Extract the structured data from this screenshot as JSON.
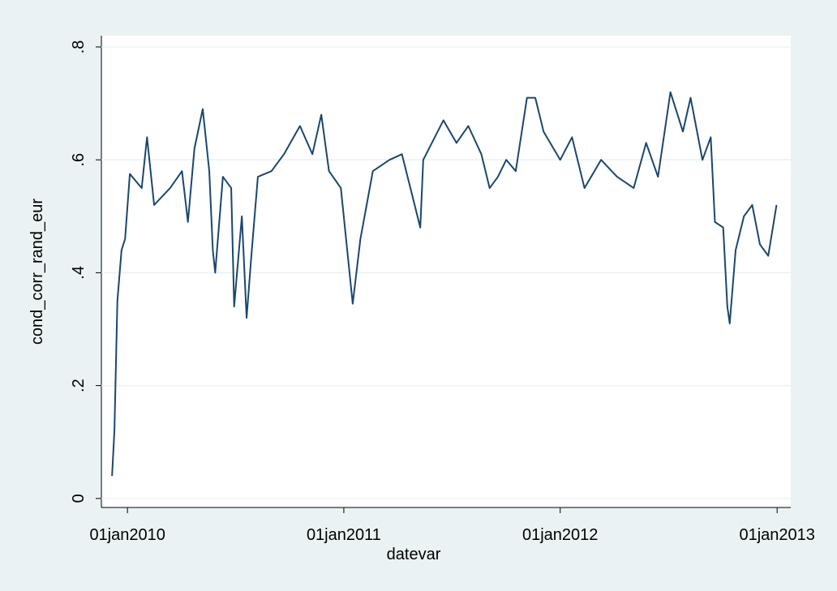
{
  "chart_data": {
    "type": "line",
    "x_label": "datevar",
    "y_label": "cond_corr_rand_eur",
    "x": [
      "2009-12-06",
      "2009-12-10",
      "2009-12-15",
      "2009-12-22",
      "2009-12-28",
      "2010-01-05",
      "2010-01-25",
      "2010-02-03",
      "2010-02-15",
      "2010-03-14",
      "2010-04-03",
      "2010-04-13",
      "2010-04-24",
      "2010-05-08",
      "2010-05-19",
      "2010-05-25",
      "2010-05-29",
      "2010-06-11",
      "2010-06-25",
      "2010-06-30",
      "2010-07-13",
      "2010-07-21",
      "2010-07-29",
      "2010-08-09",
      "2010-09-01",
      "2010-09-22",
      "2010-10-19",
      "2010-11-09",
      "2010-11-24",
      "2010-12-07",
      "2010-12-27",
      "2011-01-16",
      "2011-01-29",
      "2011-02-19",
      "2011-03-19",
      "2011-04-09",
      "2011-05-10",
      "2011-05-15",
      "2011-06-18",
      "2011-07-10",
      "2011-07-30",
      "2011-08-21",
      "2011-09-04",
      "2011-09-18",
      "2011-10-02",
      "2011-10-18",
      "2011-11-06",
      "2011-11-20",
      "2011-12-04",
      "2012-01-01",
      "2012-01-21",
      "2012-02-11",
      "2012-03-10",
      "2012-04-06",
      "2012-05-04",
      "2012-05-25",
      "2012-06-14",
      "2012-07-05",
      "2012-07-26",
      "2012-08-08",
      "2012-08-28",
      "2012-09-11",
      "2012-09-18",
      "2012-10-02",
      "2012-10-09",
      "2012-10-13",
      "2012-10-23",
      "2012-11-06",
      "2012-11-20",
      "2012-12-03",
      "2012-12-17",
      "2012-12-31"
    ],
    "series": [
      {
        "name": "cond_corr_rand_eur",
        "color": "#1a476f",
        "values": [
          0.04,
          0.12,
          0.35,
          0.44,
          0.46,
          0.575,
          0.55,
          0.64,
          0.52,
          0.55,
          0.58,
          0.49,
          0.62,
          0.69,
          0.58,
          0.44,
          0.4,
          0.57,
          0.55,
          0.34,
          0.5,
          0.32,
          0.43,
          0.57,
          0.58,
          0.61,
          0.66,
          0.61,
          0.68,
          0.58,
          0.55,
          0.345,
          0.46,
          0.58,
          0.6,
          0.61,
          0.48,
          0.6,
          0.67,
          0.63,
          0.66,
          0.61,
          0.55,
          0.57,
          0.6,
          0.58,
          0.71,
          0.71,
          0.65,
          0.6,
          0.64,
          0.55,
          0.6,
          0.57,
          0.55,
          0.63,
          0.57,
          0.72,
          0.65,
          0.71,
          0.6,
          0.64,
          0.49,
          0.48,
          0.34,
          0.31,
          0.44,
          0.5,
          0.52,
          0.45,
          0.43,
          0.52
        ]
      }
    ],
    "xlim": [
      "2009-11-18",
      "2013-01-24"
    ],
    "xticks": [
      {
        "value": "2010-01-01",
        "label": "01jan2010"
      },
      {
        "value": "2011-01-01",
        "label": "01jan2011"
      },
      {
        "value": "2012-01-01",
        "label": "01jan2012"
      },
      {
        "value": "2013-01-01",
        "label": "01jan2013"
      }
    ],
    "ylim": [
      -0.016,
      0.82
    ],
    "yticks": [
      {
        "value": 0,
        "label": "0"
      },
      {
        "value": 0.2,
        "label": ".2"
      },
      {
        "value": 0.4,
        "label": ".4"
      },
      {
        "value": 0.6,
        "label": ".6"
      },
      {
        "value": 0.8,
        "label": ".8"
      }
    ],
    "grid": true
  }
}
